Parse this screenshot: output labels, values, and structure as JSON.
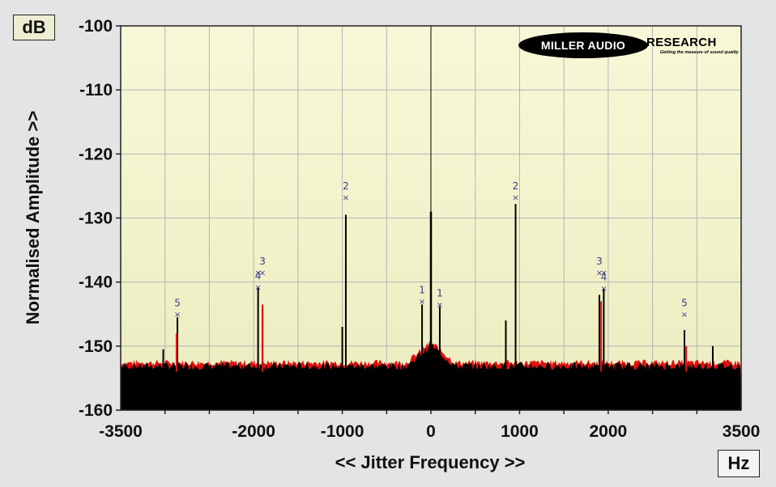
{
  "chart_data": {
    "type": "line",
    "title": "",
    "xlabel": "<< Jitter Frequency >>",
    "ylabel": "Normalised Amplitude >>",
    "x_unit": "Hz",
    "y_unit": "dB",
    "xlim": [
      -3500,
      3500
    ],
    "ylim": [
      -160,
      -100
    ],
    "x_ticks": [
      -3500,
      -2000,
      -1000,
      0,
      1000,
      2000,
      3500
    ],
    "y_ticks": [
      -100,
      -110,
      -120,
      -130,
      -140,
      -150,
      -160
    ],
    "grid": true,
    "noise_floor_db": -154,
    "colors": {
      "plot_bg_top": "#f8f8d8",
      "plot_bg_bottom": "#ececc0",
      "trace_black": "#000000",
      "trace_red": "#e01010",
      "marker": "#3a3a8a",
      "grid": "#b4b4b4"
    },
    "series": [
      {
        "color": "black",
        "peaks": [
          {
            "x": 0,
            "y": -129
          },
          {
            "x": -960,
            "y": -129.5
          },
          {
            "x": 955,
            "y": -127.8
          },
          {
            "x": -1950,
            "y": -140.8
          },
          {
            "x": -1900,
            "y": -144
          },
          {
            "x": 1900,
            "y": -142
          },
          {
            "x": 1950,
            "y": -141
          },
          {
            "x": -2860,
            "y": -145.5
          },
          {
            "x": 2860,
            "y": -147.5
          },
          {
            "x": -100,
            "y": -143.5
          },
          {
            "x": 100,
            "y": -143.8
          },
          {
            "x": 845,
            "y": -146
          },
          {
            "x": -1000,
            "y": -147
          },
          {
            "x": -3020,
            "y": -150.5
          },
          {
            "x": 3180,
            "y": -150
          }
        ]
      },
      {
        "color": "red",
        "peaks": [
          {
            "x": -1900,
            "y": -143.5
          },
          {
            "x": 1920,
            "y": -143
          },
          {
            "x": -2870,
            "y": -148
          },
          {
            "x": 2880,
            "y": -150
          }
        ]
      }
    ],
    "markers": [
      {
        "label": "5",
        "x": -2860,
        "y": -145
      },
      {
        "label": "4",
        "x": -1950,
        "y": -140.8
      },
      {
        "label": "",
        "x": -1950,
        "y": -138.5
      },
      {
        "label": "3",
        "x": -1900,
        "y": -138.5
      },
      {
        "label": "2",
        "x": -960,
        "y": -126.8
      },
      {
        "label": "1",
        "x": -100,
        "y": -143
      },
      {
        "label": "1",
        "x": 100,
        "y": -143.5
      },
      {
        "label": "2",
        "x": 955,
        "y": -126.8
      },
      {
        "label": "3",
        "x": 1900,
        "y": -138.5
      },
      {
        "label": "4",
        "x": 1950,
        "y": -141
      },
      {
        "label": "",
        "x": 1950,
        "y": -138.5
      },
      {
        "label": "5",
        "x": 2860,
        "y": -145
      }
    ]
  },
  "units": {
    "y": "dB",
    "x": "Hz"
  },
  "logo": {
    "brand": "MILLER AUDIO",
    "research": "RESEARCH",
    "tagline": "Getting the measure of sound quality"
  }
}
